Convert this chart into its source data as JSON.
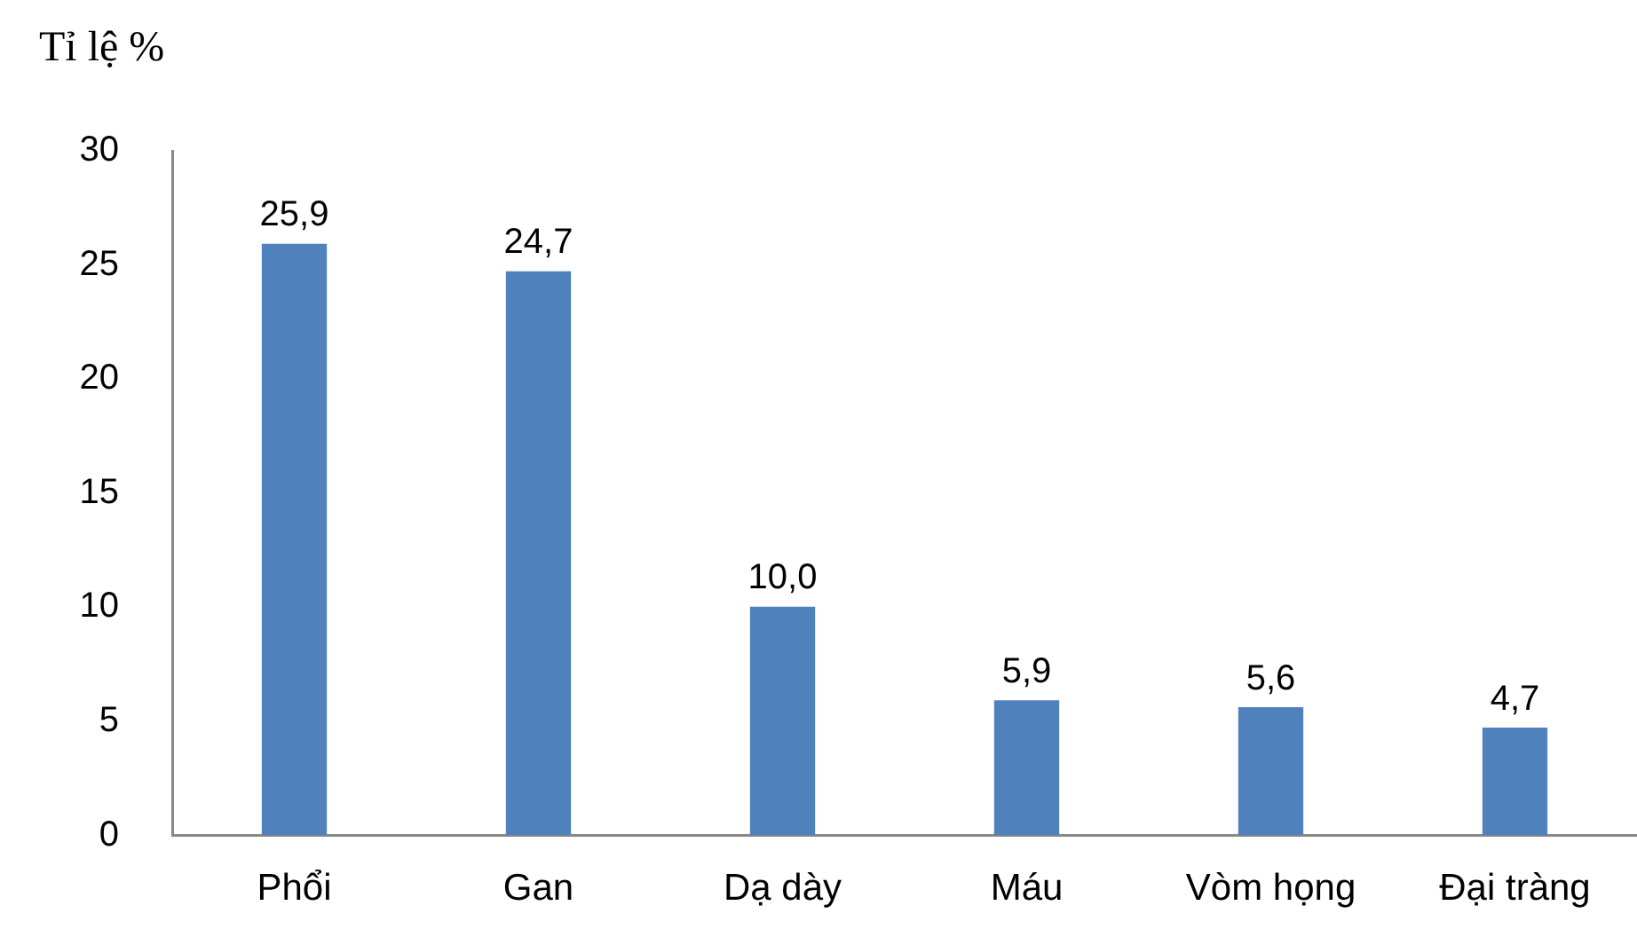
{
  "chart_data": {
    "type": "bar",
    "ylabel": "Tỉ lệ %",
    "categories": [
      "Phổi",
      "Gan",
      "Dạ dày",
      "Máu",
      "Vòm họng",
      "Đại tràng"
    ],
    "values": [
      25.9,
      24.7,
      10.0,
      5.9,
      5.6,
      4.7
    ],
    "value_labels": [
      "25,9",
      "24,7",
      "10,0",
      "5,9",
      "5,6",
      "4,7"
    ],
    "color": "#4f81bd",
    "ylim": [
      0,
      30
    ],
    "yticks": [
      0,
      5,
      10,
      15,
      20,
      25,
      30
    ],
    "grid": false,
    "legend": false
  }
}
